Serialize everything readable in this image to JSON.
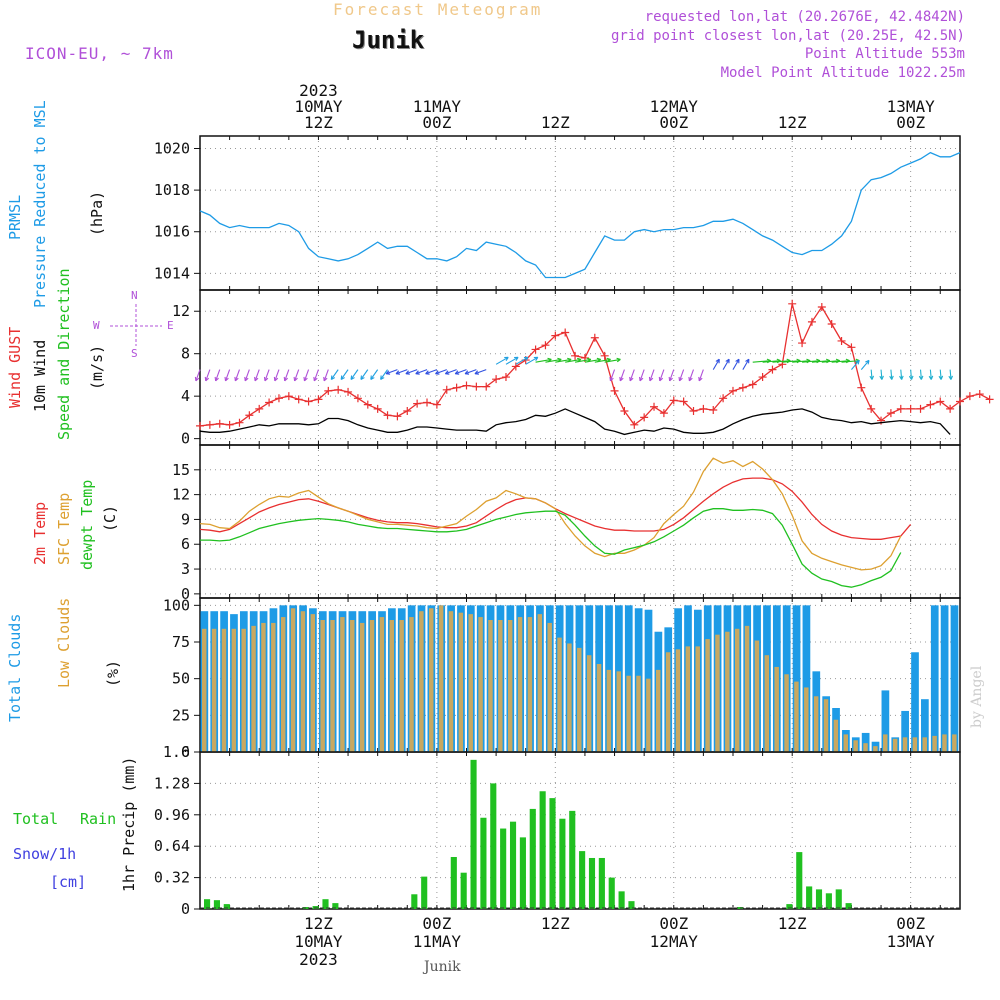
{
  "header": {
    "super_title": "Forecast Meteogram",
    "location": "Junik",
    "model": "ICON-EU, ~ 7km",
    "requested": "requested lon,lat (20.2676E, 42.4842N)",
    "grid_point": "grid point closest lon,lat (20.25E, 42.5N)",
    "point_alt": "Point Altitude 553m",
    "model_alt": "Model Point Altitude 1022.25m"
  },
  "time_axis": {
    "top_labels": [
      {
        "t": 12,
        "lines": [
          "2023",
          "10MAY",
          "12Z"
        ]
      },
      {
        "t": 24,
        "lines": [
          "11MAY",
          "00Z"
        ]
      },
      {
        "t": 36,
        "lines": [
          "12Z"
        ]
      },
      {
        "t": 48,
        "lines": [
          "12MAY",
          "00Z"
        ]
      },
      {
        "t": 60,
        "lines": [
          "12Z"
        ]
      },
      {
        "t": 72,
        "lines": [
          "13MAY",
          "00Z"
        ]
      }
    ],
    "bottom_labels": [
      {
        "t": 12,
        "lines": [
          "12Z",
          "10MAY",
          "2023"
        ]
      },
      {
        "t": 24,
        "lines": [
          "00Z",
          "11MAY"
        ]
      },
      {
        "t": 36,
        "lines": [
          "12Z"
        ]
      },
      {
        "t": 48,
        "lines": [
          "00Z",
          "12MAY"
        ]
      },
      {
        "t": 60,
        "lines": [
          "12Z"
        ]
      },
      {
        "t": 72,
        "lines": [
          "00Z",
          "13MAY"
        ]
      }
    ],
    "footer": "Junik",
    "credit": "by Angel"
  },
  "colors": {
    "pressure": "#1E9BE6",
    "gust": "#E83030",
    "wind": "#000000",
    "t2m": "#E83030",
    "tsfc": "#DDA030",
    "dewpt": "#20C020",
    "total_cloud": "#1E9BE6",
    "low_cloud": "#C8A860",
    "rain": "#20C020",
    "snow": "#4040E0",
    "purple": "#B050D8"
  },
  "panels": {
    "pressure": {
      "labels": [
        "PRMSL",
        "Pressure Reduced to MSL",
        "(hPa)"
      ]
    },
    "wind": {
      "labels": [
        "Wind GUST",
        "10m Wind",
        "Speed and Direction",
        "(m/s)"
      ],
      "compass": [
        "N",
        "W",
        "E",
        "S"
      ]
    },
    "temp": {
      "labels": [
        "2m Temp",
        "SFC Temp",
        "dewpt Temp",
        "(C)"
      ]
    },
    "cloud": {
      "labels": [
        "Total Clouds",
        "Low Clouds",
        "(%)"
      ]
    },
    "precip": {
      "labels": [
        "Total",
        "Rain",
        "Snow/1h",
        "[cm]",
        "1hr Precip (mm)"
      ]
    }
  },
  "chart_data": [
    {
      "type": "line",
      "panel": "pressure",
      "x_start": 0,
      "x_step": 1,
      "xlim": [
        0,
        77
      ],
      "ylim": [
        1013.2,
        1020.6
      ],
      "yticks": [
        1014,
        1016,
        1018,
        1020
      ],
      "series": [
        {
          "values": [
            1017.0,
            1016.8,
            1016.4,
            1016.2,
            1016.3,
            1016.2,
            1016.2,
            1016.2,
            1016.4,
            1016.3,
            1016.0,
            1015.2,
            1014.8,
            1014.7,
            1014.6,
            1014.7,
            1014.9,
            1015.2,
            1015.5,
            1015.2,
            1015.3,
            1015.3,
            1015.0,
            1014.7,
            1014.7,
            1014.6,
            1014.8,
            1015.2,
            1015.1,
            1015.5,
            1015.4,
            1015.3,
            1015.0,
            1014.6,
            1014.4,
            1013.8,
            1013.8,
            1013.8,
            1014.0,
            1014.2,
            1015.0,
            1015.8,
            1015.6,
            1015.6,
            1016.0,
            1016.1,
            1016.0,
            1016.1,
            1016.1,
            1016.2,
            1016.2,
            1016.3,
            1016.5,
            1016.5,
            1016.6,
            1016.4,
            1016.1,
            1015.8,
            1015.6,
            1015.3,
            1015.0,
            1014.9,
            1015.1,
            1015.1,
            1015.4,
            1015.8,
            1016.5,
            1018.0,
            1018.5,
            1018.6,
            1018.8,
            1019.1,
            1019.3,
            1019.5,
            1019.8,
            1019.6,
            1019.6,
            1019.8
          ]
        }
      ]
    },
    {
      "type": "line",
      "panel": "wind",
      "x_start": 0,
      "x_step": 1,
      "xlim": [
        0,
        77
      ],
      "ylim": [
        -0.6,
        14.0
      ],
      "yticks": [
        0,
        4,
        8,
        12
      ],
      "series": [
        {
          "name": "Wind GUST",
          "values": [
            1.2,
            1.3,
            1.4,
            1.3,
            1.5,
            2.2,
            2.8,
            3.4,
            3.8,
            4.0,
            3.7,
            3.5,
            3.7,
            4.5,
            4.6,
            4.4,
            3.8,
            3.2,
            2.8,
            2.2,
            2.1,
            2.6,
            3.3,
            3.4,
            3.2,
            4.6,
            4.8,
            5.0,
            4.9,
            4.9,
            5.6,
            5.8,
            6.8,
            7.4,
            8.4,
            8.8,
            9.7,
            10.0,
            7.8,
            7.6,
            9.5,
            7.8,
            4.5,
            2.6,
            1.3,
            2.0,
            3.0,
            2.4,
            3.6,
            3.5,
            2.6,
            2.8,
            2.7,
            3.8,
            4.5,
            4.8,
            5.1,
            5.8,
            6.5,
            7.0,
            12.7,
            9.0,
            11.0,
            12.4,
            10.8,
            9.2,
            8.6,
            4.8,
            2.8,
            1.7,
            2.4,
            2.8,
            2.8,
            2.8,
            3.2,
            3.5,
            2.8,
            3.5,
            4.0,
            4.2,
            3.7
          ]
        },
        {
          "name": "10m Wind",
          "values": [
            0.7,
            0.6,
            0.6,
            0.7,
            0.9,
            1.1,
            1.3,
            1.2,
            1.4,
            1.4,
            1.4,
            1.3,
            1.4,
            1.9,
            1.9,
            1.7,
            1.3,
            1.0,
            0.8,
            0.6,
            0.6,
            0.8,
            1.1,
            1.1,
            1.0,
            0.9,
            0.8,
            0.8,
            0.8,
            0.7,
            1.3,
            1.5,
            1.6,
            1.8,
            2.2,
            2.1,
            2.4,
            2.8,
            2.4,
            2.0,
            1.6,
            0.9,
            0.7,
            0.4,
            0.6,
            0.8,
            0.7,
            1.0,
            0.9,
            0.6,
            0.5,
            0.5,
            0.6,
            0.9,
            1.4,
            1.8,
            2.1,
            2.3,
            2.4,
            2.5,
            2.7,
            2.8,
            2.5,
            2.0,
            1.8,
            1.7,
            1.5,
            1.6,
            1.4,
            1.5,
            1.6,
            1.7,
            1.6,
            1.5,
            1.6,
            1.4,
            0.4
          ]
        }
      ]
    },
    {
      "type": "line",
      "panel": "temp",
      "x_start": 0,
      "x_step": 1,
      "xlim": [
        0,
        77
      ],
      "ylim": [
        -0.5,
        18.0
      ],
      "yticks": [
        0,
        3,
        6,
        9,
        12,
        15
      ],
      "series": [
        {
          "name": "2m Temp",
          "values": [
            7.8,
            7.7,
            7.5,
            7.8,
            8.5,
            9.2,
            9.9,
            10.4,
            10.8,
            11.1,
            11.4,
            11.5,
            11.2,
            10.8,
            10.4,
            10.0,
            9.6,
            9.2,
            8.9,
            8.7,
            8.6,
            8.6,
            8.5,
            8.3,
            8.1,
            8.0,
            8.0,
            8.2,
            8.6,
            9.4,
            10.2,
            10.9,
            11.4,
            11.6,
            11.5,
            11.0,
            10.3,
            9.7,
            9.2,
            8.7,
            8.2,
            7.9,
            7.7,
            7.7,
            7.6,
            7.6,
            7.6,
            7.8,
            8.4,
            9.2,
            10.2,
            11.2,
            12.1,
            12.9,
            13.5,
            13.9,
            14.0,
            14.0,
            13.8,
            13.3,
            12.4,
            11.1,
            9.6,
            8.4,
            7.6,
            7.1,
            6.8,
            6.7,
            6.6,
            6.6,
            6.8,
            7.0,
            8.4
          ]
        },
        {
          "name": "SFC Temp",
          "values": [
            8.5,
            8.4,
            8.0,
            7.9,
            8.8,
            10.0,
            10.8,
            11.5,
            11.8,
            11.7,
            12.2,
            12.5,
            11.7,
            10.9,
            10.4,
            10.0,
            9.5,
            9.0,
            8.7,
            8.4,
            8.4,
            8.3,
            8.2,
            8.0,
            7.9,
            8.2,
            8.5,
            9.4,
            10.2,
            11.2,
            11.6,
            12.5,
            12.1,
            11.6,
            11.5,
            11.0,
            10.3,
            8.5,
            7.0,
            5.8,
            4.9,
            4.5,
            4.9,
            4.9,
            5.3,
            5.9,
            6.8,
            8.5,
            9.6,
            10.6,
            12.3,
            14.8,
            16.4,
            15.8,
            16.1,
            15.4,
            16.0,
            15.1,
            13.8,
            12.1,
            9.5,
            6.4,
            4.9,
            4.3,
            3.9,
            3.5,
            3.2,
            2.9,
            3.0,
            3.4,
            4.6,
            7.0
          ]
        },
        {
          "name": "dewpt Temp",
          "values": [
            6.5,
            6.5,
            6.4,
            6.5,
            6.9,
            7.4,
            7.9,
            8.2,
            8.5,
            8.7,
            8.9,
            9.0,
            9.1,
            9.0,
            8.9,
            8.7,
            8.4,
            8.2,
            8.0,
            7.9,
            7.9,
            7.8,
            7.7,
            7.6,
            7.5,
            7.5,
            7.6,
            7.8,
            8.2,
            8.6,
            9.0,
            9.3,
            9.6,
            9.8,
            9.9,
            10.0,
            10.0,
            9.5,
            8.3,
            7.0,
            5.8,
            4.9,
            4.8,
            5.3,
            5.6,
            5.9,
            6.3,
            6.9,
            7.6,
            8.3,
            9.2,
            10.0,
            10.3,
            10.3,
            10.1,
            10.1,
            10.2,
            10.1,
            9.7,
            8.3,
            6.0,
            3.6,
            2.5,
            1.8,
            1.5,
            1.0,
            0.8,
            1.1,
            1.6,
            2.0,
            2.8,
            5.0
          ]
        }
      ]
    },
    {
      "type": "bar",
      "panel": "cloud",
      "x_start": 0,
      "x_step": 1,
      "xlim": [
        0,
        77
      ],
      "ylim": [
        0,
        105
      ],
      "yticks": [
        0,
        25,
        50,
        75,
        100
      ],
      "series": [
        {
          "name": "Total Clouds",
          "values": [
            96,
            96,
            96,
            94,
            96,
            96,
            96,
            98,
            100,
            100,
            100,
            98,
            96,
            96,
            96,
            96,
            96,
            96,
            96,
            98,
            98,
            100,
            100,
            100,
            100,
            100,
            100,
            100,
            100,
            100,
            100,
            100,
            100,
            100,
            100,
            100,
            100,
            100,
            100,
            100,
            100,
            100,
            100,
            100,
            98,
            97,
            82,
            85,
            98,
            100,
            97,
            100,
            100,
            100,
            100,
            100,
            100,
            100,
            100,
            100,
            100,
            100,
            55,
            38,
            30,
            15,
            10,
            13,
            7,
            42,
            10,
            28,
            68,
            36,
            100,
            100,
            100
          ]
        },
        {
          "name": "Low Clouds",
          "values": [
            84,
            84,
            84,
            84,
            84,
            86,
            88,
            88,
            92,
            98,
            96,
            94,
            90,
            90,
            92,
            90,
            88,
            90,
            92,
            90,
            90,
            92,
            96,
            98,
            100,
            96,
            95,
            94,
            92,
            90,
            90,
            90,
            92,
            92,
            94,
            88,
            78,
            74,
            71,
            66,
            60,
            56,
            55,
            52,
            52,
            50,
            56,
            68,
            70,
            72,
            72,
            77,
            80,
            82,
            84,
            86,
            76,
            66,
            58,
            53,
            48,
            44,
            38,
            36,
            22,
            12,
            8,
            6,
            4,
            12,
            9,
            10,
            10,
            10,
            11,
            12,
            12
          ]
        }
      ]
    },
    {
      "type": "bar",
      "panel": "precip",
      "x_start": 0,
      "x_step": 1,
      "xlim": [
        0,
        77
      ],
      "ylim": [
        0,
        1.6
      ],
      "yticks": [
        0,
        0.32,
        0.64,
        0.96,
        1.28,
        1.6
      ],
      "series": [
        {
          "name": "Total Rain",
          "values": [
            0.1,
            0.09,
            0.05,
            0,
            0,
            0,
            0,
            0,
            0,
            0,
            0.02,
            0.03,
            0.1,
            0.06,
            0,
            0,
            0,
            0,
            0,
            0,
            0,
            0.15,
            0.33,
            0,
            0,
            0.53,
            0.37,
            1.52,
            0.93,
            1.28,
            0.82,
            0.89,
            0.73,
            1.02,
            1.2,
            1.13,
            0.92,
            1.0,
            0.59,
            0.52,
            0.52,
            0.32,
            0.18,
            0.08,
            0,
            0,
            0,
            0,
            0,
            0,
            0,
            0,
            0,
            0,
            0.02,
            0,
            0,
            0,
            0,
            0.05,
            0.58,
            0.23,
            0.2,
            0.16,
            0.2,
            0.06,
            0,
            0,
            0,
            0,
            0,
            0,
            0,
            0,
            0,
            0,
            0
          ]
        }
      ]
    }
  ]
}
